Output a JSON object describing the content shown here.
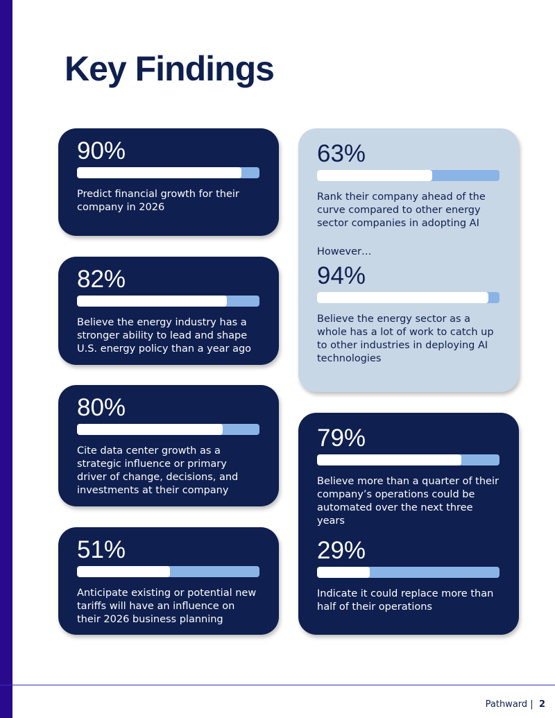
{
  "title": "Key Findings",
  "cards": [
    {
      "column": "left",
      "theme": "dark",
      "items": [
        {
          "value": 90,
          "label": "90%",
          "text": "Predict financial growth for their company in 2026"
        }
      ]
    },
    {
      "column": "left",
      "theme": "dark",
      "items": [
        {
          "value": 82,
          "label": "82%",
          "text": "Believe the energy industry has a stronger ability to lead and shape U.S. energy policy than a year ago"
        }
      ]
    },
    {
      "column": "left",
      "theme": "dark",
      "items": [
        {
          "value": 80,
          "label": "80%",
          "text": "Cite data center growth as a strategic influence or primary driver of change, decisions, and investments at their company"
        }
      ]
    },
    {
      "column": "left",
      "theme": "dark",
      "items": [
        {
          "value": 51,
          "label": "51%",
          "text": "Anticipate existing or potential new tariffs will have an influence on their 2026 business planning"
        }
      ]
    },
    {
      "column": "right",
      "theme": "light",
      "items": [
        {
          "value": 63,
          "label": "63%",
          "text": "Rank their company ahead of the curve compared to other energy sector companies in adopting AI"
        },
        {
          "lead": "However…",
          "value": 94,
          "label": "94%",
          "text": "Believe the energy sector as a whole has a lot of work to catch up to other industries in deploying AI technologies"
        }
      ]
    },
    {
      "column": "right",
      "theme": "dark",
      "items": [
        {
          "value": 79,
          "label": "79%",
          "text": "Believe more than a quarter of their company’s operations could be automated over the next three years"
        },
        {
          "value": 29,
          "label": "29%",
          "text": "Indicate it could replace more than half of their operations"
        }
      ]
    }
  ],
  "footer": {
    "brand": "Pathward",
    "separator": "|",
    "page": "2"
  }
}
